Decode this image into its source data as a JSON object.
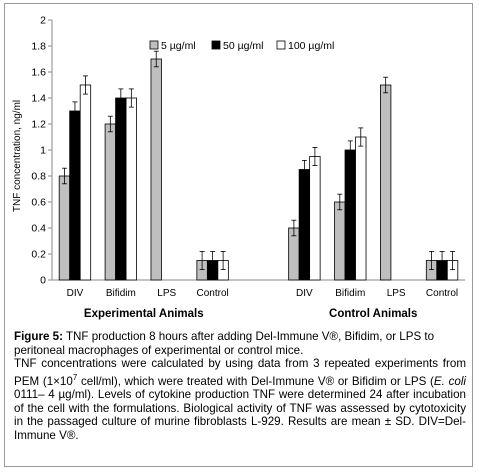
{
  "chart_data": {
    "type": "bar",
    "title": "",
    "xlabel": "",
    "ylabel": "TNF concentration, ng/ml",
    "ylim": [
      0,
      2
    ],
    "yticks": [
      "0",
      "0.2",
      "0.4",
      "0.6",
      "0.8",
      "1",
      "1.2",
      "1.4",
      "1.6",
      "1.8",
      "2"
    ],
    "grid": false,
    "legend_position": "top",
    "groups": [
      {
        "name": "Experimental Animals",
        "categories": [
          "DIV",
          "Bifidim",
          "LPS",
          "Control"
        ]
      },
      {
        "name": "Control Animals",
        "categories": [
          "DIV",
          "Bifidim",
          "LPS",
          "Control"
        ]
      }
    ],
    "series": [
      {
        "name": "5 µg/ml",
        "color": "#bfbfbf",
        "values": [
          0.8,
          1.2,
          1.7,
          0.15,
          0.4,
          0.6,
          1.5,
          0.15
        ],
        "errors": [
          0.06,
          0.06,
          0.06,
          0.07,
          0.06,
          0.06,
          0.06,
          0.07
        ]
      },
      {
        "name": "50 µg/ml",
        "color": "#000000",
        "values": [
          1.3,
          1.4,
          null,
          0.15,
          0.85,
          1.0,
          null,
          0.15
        ],
        "errors": [
          0.07,
          0.07,
          null,
          0.07,
          0.07,
          0.07,
          null,
          0.07
        ]
      },
      {
        "name": "100 µg/ml",
        "color": "#ffffff",
        "values": [
          1.5,
          1.4,
          null,
          0.15,
          0.95,
          1.1,
          null,
          0.15
        ],
        "errors": [
          0.07,
          0.07,
          null,
          0.07,
          0.07,
          0.07,
          null,
          0.07
        ]
      }
    ]
  },
  "caption": {
    "label": "Figure 5:",
    "line1": " TNF production 8 hours after adding Del-Immune V®, Bifidim, or LPS to peritoneal macrophages of experimental or control mice.",
    "p2_a": "TNF concentrations were calculated by using data from 3 repeated experiments from PEM (1×10",
    "p2_sup": "7",
    "p2_b": " cell/ml), which were treated with Del-Immune V® or Bifidim or LPS (",
    "p2_ecoli": "E. coli",
    "p2_c": " 0111– 4 µg/ml). Levels of cytokine production TNF were determined 24 after incubation of the cell with the formulations. Biological activity of TNF was assessed by cytotoxicity in the passaged culture of murine fibroblasts L-929. Results are mean ± SD. DIV=Del-Immune V®."
  }
}
